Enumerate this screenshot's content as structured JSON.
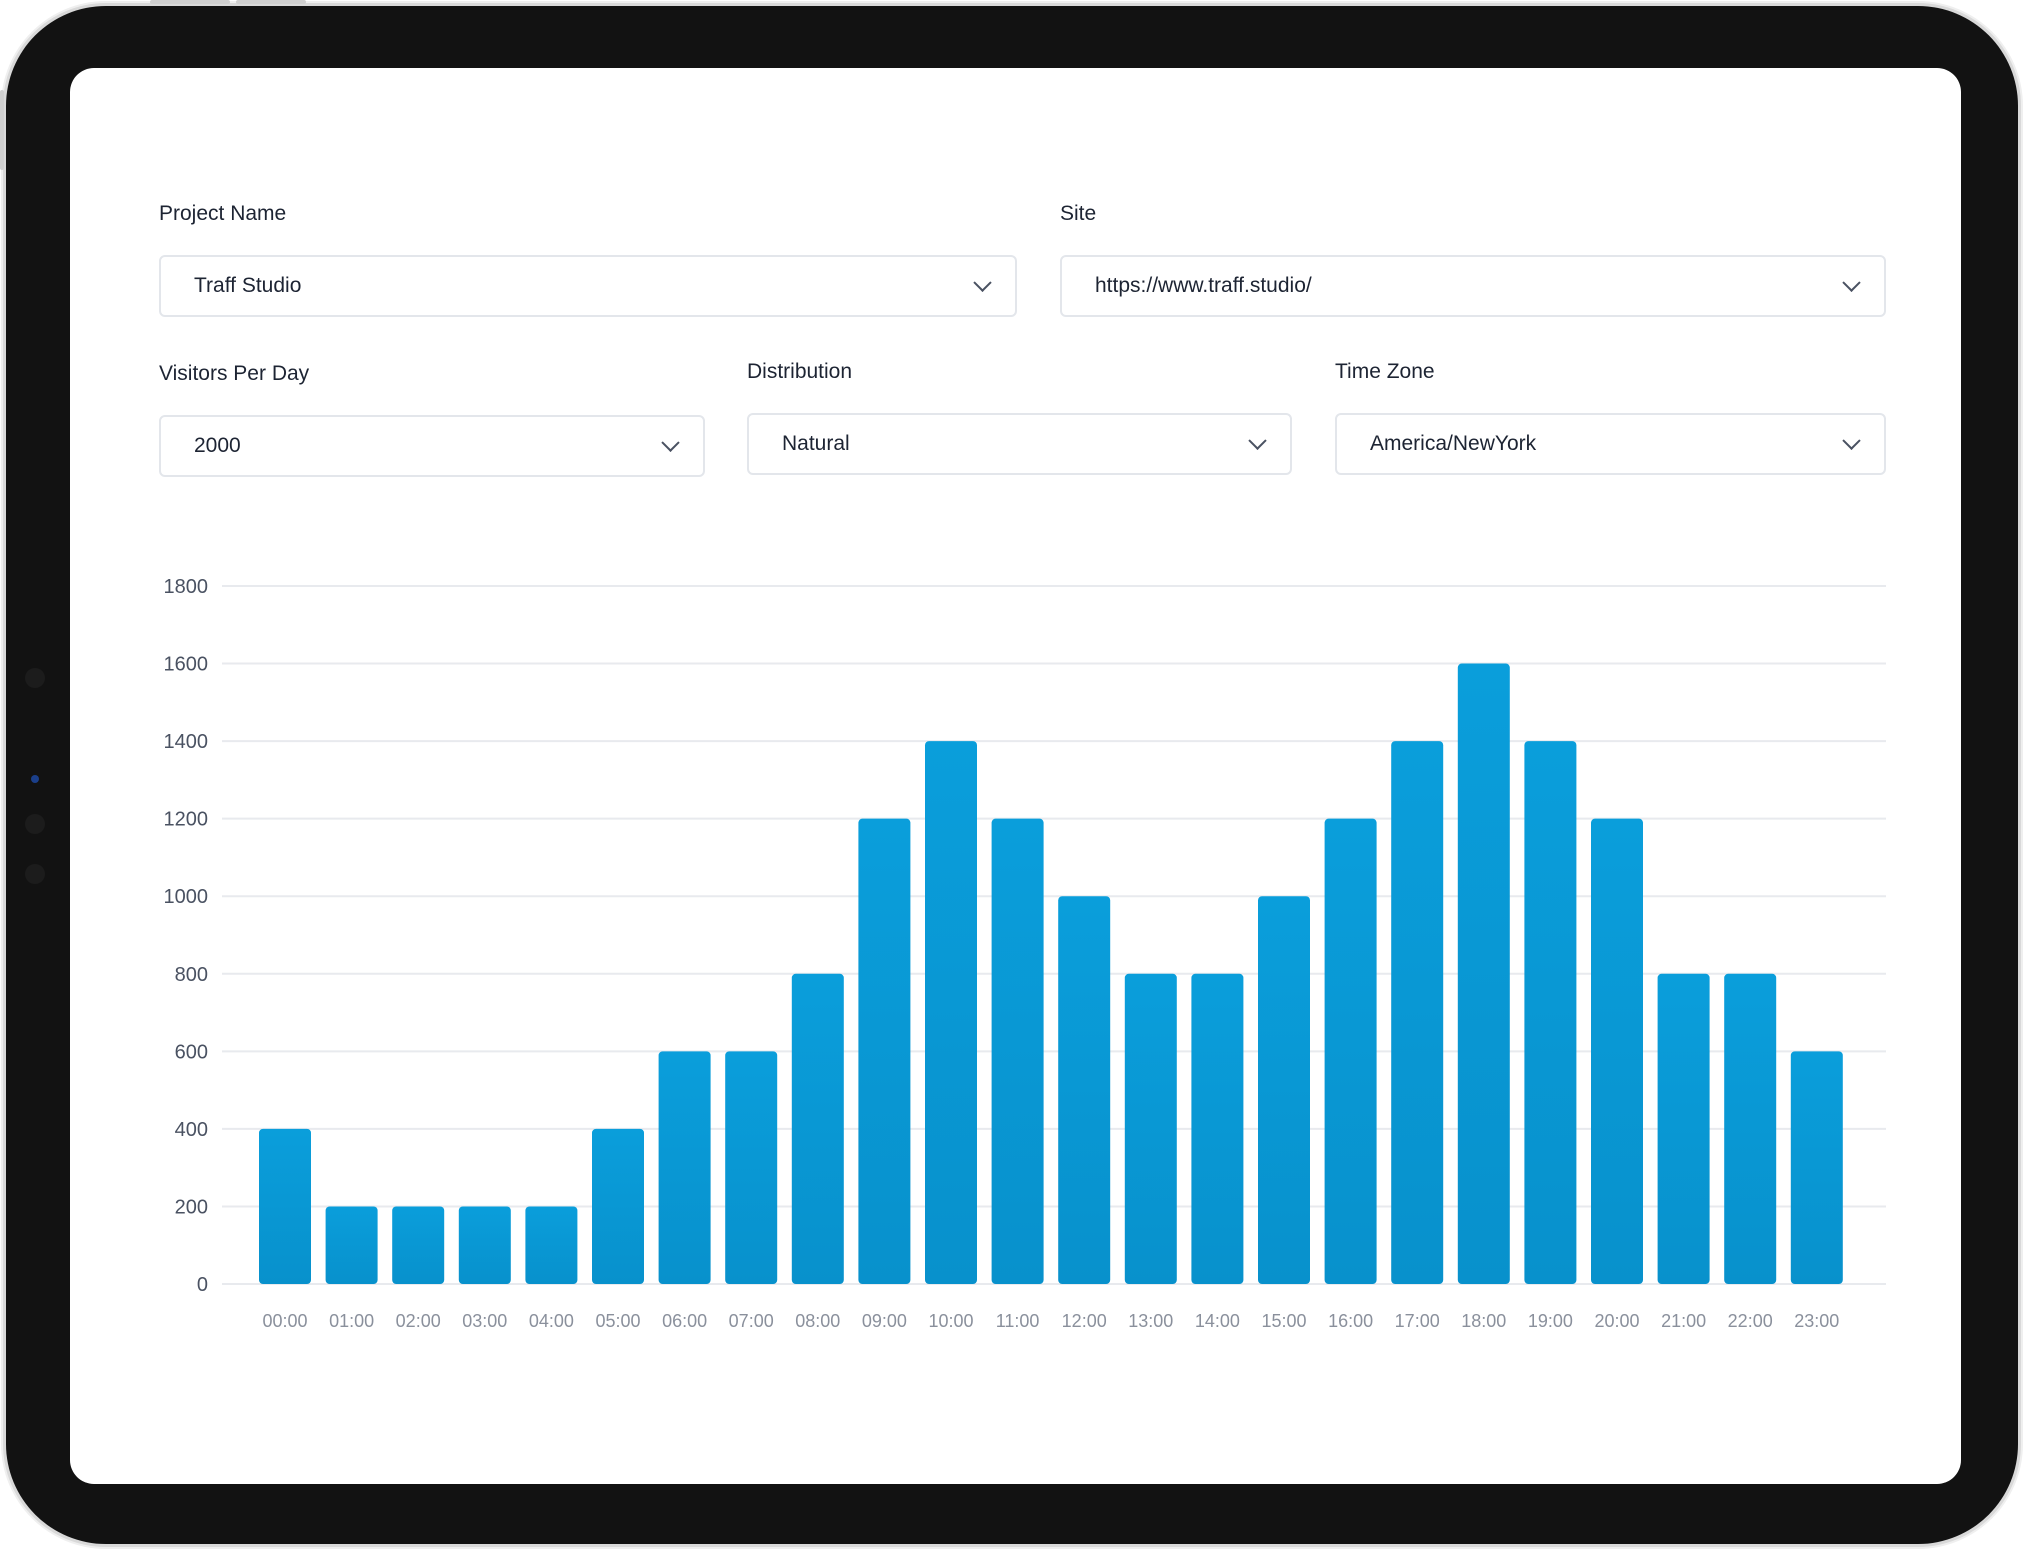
{
  "form": {
    "project_name": {
      "label": "Project Name",
      "value": "Traff Studio"
    },
    "site": {
      "label": "Site",
      "value": "https://www.traff.studio/"
    },
    "visitors_per_day": {
      "label": "Visitors Per Day",
      "value": "2000"
    },
    "distribution": {
      "label": "Distribution",
      "value": "Natural"
    },
    "time_zone": {
      "label": "Time Zone",
      "value": "America/NewYork"
    }
  },
  "chart_data": {
    "type": "bar",
    "title": "",
    "xlabel": "",
    "ylabel": "",
    "categories": [
      "00:00",
      "01:00",
      "02:00",
      "03:00",
      "04:00",
      "05:00",
      "06:00",
      "07:00",
      "08:00",
      "09:00",
      "10:00",
      "11:00",
      "12:00",
      "13:00",
      "14:00",
      "15:00",
      "16:00",
      "17:00",
      "18:00",
      "19:00",
      "20:00",
      "21:00",
      "22:00",
      "23:00"
    ],
    "values": [
      400,
      200,
      200,
      200,
      200,
      400,
      600,
      600,
      800,
      1200,
      1400,
      1200,
      1000,
      800,
      800,
      1000,
      1200,
      1400,
      1600,
      1400,
      1200,
      800,
      800,
      600
    ],
    "yticks": [
      0,
      200,
      400,
      600,
      800,
      1000,
      1200,
      1400,
      1600,
      1800
    ],
    "ylim": [
      0,
      1800
    ],
    "grid": true,
    "bar_color": "#0a9edb",
    "bar_color_bottom": "#0891cc"
  }
}
